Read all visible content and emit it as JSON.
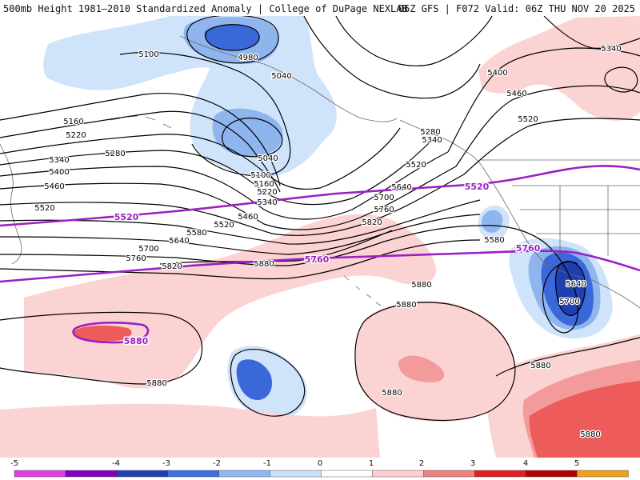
{
  "header": {
    "left": "500mb Height 1981–2010 Standardized Anomaly | College of DuPage NEXLAB",
    "right": "06Z GFS | F072 Valid: 06Z THU NOV 20 2025"
  },
  "contour_labels": [
    {
      "text": "4980"
    },
    {
      "text": "5040"
    },
    {
      "text": "5040"
    },
    {
      "text": "5100"
    },
    {
      "text": "5100"
    },
    {
      "text": "5160"
    },
    {
      "text": "5160"
    },
    {
      "text": "5220"
    },
    {
      "text": "5220"
    },
    {
      "text": "5280"
    },
    {
      "text": "5280"
    },
    {
      "text": "5340"
    },
    {
      "text": "5340"
    },
    {
      "text": "5340"
    },
    {
      "text": "5340"
    },
    {
      "text": "5400"
    },
    {
      "text": "5400"
    },
    {
      "text": "5460"
    },
    {
      "text": "5460"
    },
    {
      "text": "5460"
    },
    {
      "text": "5520"
    },
    {
      "text": "5520"
    },
    {
      "text": "5520"
    },
    {
      "text": "5520"
    },
    {
      "text": "5580"
    },
    {
      "text": "5580"
    },
    {
      "text": "5640"
    },
    {
      "text": "5640"
    },
    {
      "text": "5640"
    },
    {
      "text": "5700"
    },
    {
      "text": "5700"
    },
    {
      "text": "5700"
    },
    {
      "text": "5760"
    },
    {
      "text": "5760"
    },
    {
      "text": "5820"
    },
    {
      "text": "5820"
    },
    {
      "text": "5880"
    },
    {
      "text": "5880"
    },
    {
      "text": "5880"
    },
    {
      "text": "5880"
    },
    {
      "text": "5880"
    },
    {
      "text": "5880"
    },
    {
      "text": "5880"
    }
  ],
  "highlight_labels": [
    {
      "text": "5520"
    },
    {
      "text": "5520"
    },
    {
      "text": "5760"
    },
    {
      "text": "5760"
    },
    {
      "text": "5880"
    }
  ],
  "colorbar": {
    "ticks": [
      "-5",
      "-4",
      "-3",
      "-2",
      "-1",
      "0",
      "1",
      "2",
      "3",
      "4",
      "5"
    ],
    "colors": [
      "#e040e0",
      "#8000c0",
      "#1e40b0",
      "#3c70e0",
      "#90b8f0",
      "#c8e0fa",
      "#ffffff",
      "#fcd0d0",
      "#f08080",
      "#e02020",
      "#b00000",
      "#f0a020"
    ]
  },
  "colors": {
    "neg1": "#cfe3fa",
    "neg2": "#8fb5ef",
    "neg3": "#3b68d8",
    "neg4": "#1e3fae",
    "pos1": "#fcd3d3",
    "pos2": "#f39a9a",
    "pos3": "#ee5b5b",
    "contour": "#000000",
    "highlight": "#9b1fc4",
    "border": "#6a6a6a"
  }
}
